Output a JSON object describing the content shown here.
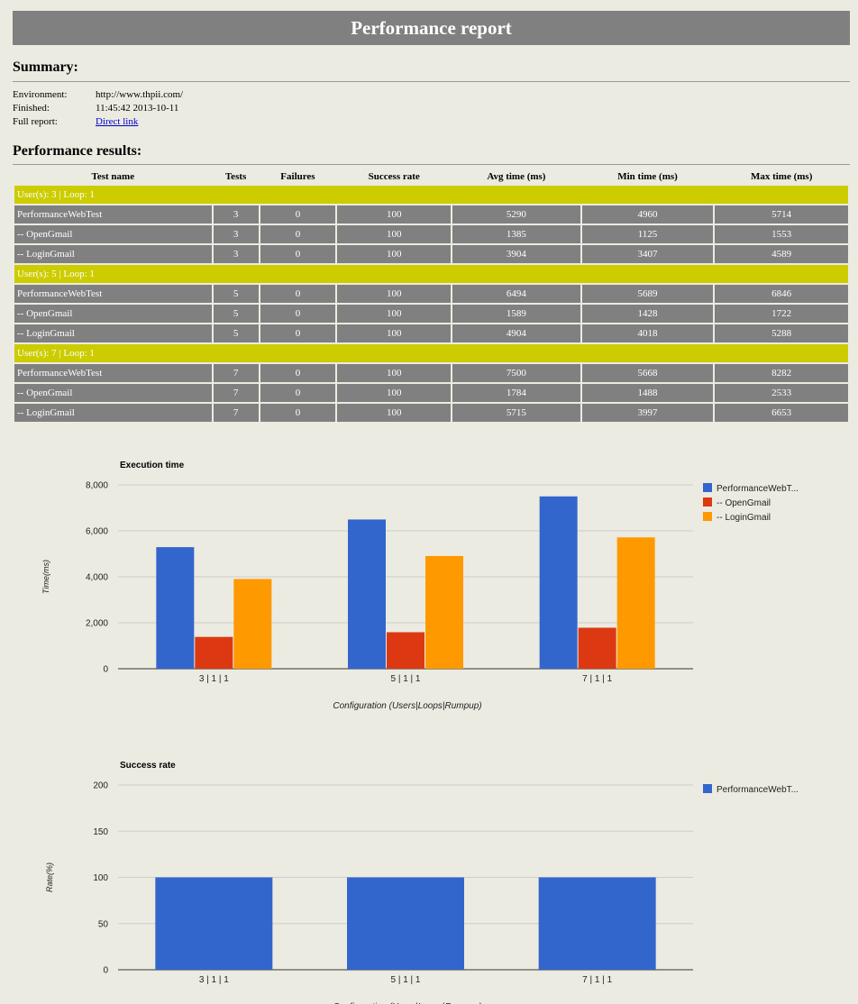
{
  "header": {
    "title": "Performance report"
  },
  "summary": {
    "heading": "Summary:",
    "environment_label": "Environment:",
    "environment_value": "http://www.thpii.com/",
    "finished_label": "Finished:",
    "finished_value": "11:45:42 2013-10-11",
    "full_report_label": "Full report:",
    "full_report_link": "Direct link"
  },
  "results": {
    "heading": "Performance results:",
    "columns": [
      "Test name",
      "Tests",
      "Failures",
      "Success rate",
      "Avg time (ms)",
      "Min time (ms)",
      "Max time (ms)"
    ],
    "groups": [
      {
        "label": "User(s): 3 | Loop: 1",
        "rows": [
          [
            "PerformanceWebTest",
            "3",
            "0",
            "100",
            "5290",
            "4960",
            "5714"
          ],
          [
            "-- OpenGmail",
            "3",
            "0",
            "100",
            "1385",
            "1125",
            "1553"
          ],
          [
            "-- LoginGmail",
            "3",
            "0",
            "100",
            "3904",
            "3407",
            "4589"
          ]
        ]
      },
      {
        "label": "User(s): 5 | Loop: 1",
        "rows": [
          [
            "PerformanceWebTest",
            "5",
            "0",
            "100",
            "6494",
            "5689",
            "6846"
          ],
          [
            "-- OpenGmail",
            "5",
            "0",
            "100",
            "1589",
            "1428",
            "1722"
          ],
          [
            "-- LoginGmail",
            "5",
            "0",
            "100",
            "4904",
            "4018",
            "5288"
          ]
        ]
      },
      {
        "label": "User(s): 7 | Loop: 1",
        "rows": [
          [
            "PerformanceWebTest",
            "7",
            "0",
            "100",
            "7500",
            "5668",
            "8282"
          ],
          [
            "-- OpenGmail",
            "7",
            "0",
            "100",
            "1784",
            "1488",
            "2533"
          ],
          [
            "-- LoginGmail",
            "7",
            "0",
            "100",
            "5715",
            "3997",
            "6653"
          ]
        ]
      }
    ]
  },
  "colors": {
    "title_bar": "#808080",
    "group_row": "#cccc00",
    "data_row": "#808080",
    "background": "#ecebe1"
  },
  "chart_data": [
    {
      "type": "bar",
      "title": "Execution time",
      "xlabel": "Configuration (Users|Loops|Rumpup)",
      "ylabel": "Time(ms)",
      "categories": [
        "3 | 1 | 1",
        "5 | 1 | 1",
        "7 | 1 | 1"
      ],
      "series": [
        {
          "name": "PerformanceWebT...",
          "color": "#3366cc",
          "values": [
            5290,
            6494,
            7500
          ]
        },
        {
          "name": "-- OpenGmail",
          "color": "#dc3912",
          "values": [
            1385,
            1589,
            1784
          ]
        },
        {
          "name": "-- LoginGmail",
          "color": "#ff9900",
          "values": [
            3904,
            4904,
            5715
          ]
        }
      ],
      "ylim": [
        0,
        8000
      ],
      "yticks": [
        0,
        2000,
        4000,
        6000,
        8000
      ],
      "ytick_labels": [
        "0",
        "2,000",
        "4,000",
        "6,000",
        "8,000"
      ],
      "grid": true,
      "legend": "right"
    },
    {
      "type": "bar",
      "title": "Success rate",
      "xlabel": "Configuration (Users|Loops|Rumpup)",
      "ylabel": "Rate(%)",
      "categories": [
        "3 | 1 | 1",
        "5 | 1 | 1",
        "7 | 1 | 1"
      ],
      "series": [
        {
          "name": "PerformanceWebT...",
          "color": "#3366cc",
          "values": [
            100,
            100,
            100
          ]
        }
      ],
      "ylim": [
        0,
        200
      ],
      "yticks": [
        0,
        50,
        100,
        150,
        200
      ],
      "ytick_labels": [
        "0",
        "50",
        "100",
        "150",
        "200"
      ],
      "grid": true,
      "legend": "right"
    }
  ]
}
